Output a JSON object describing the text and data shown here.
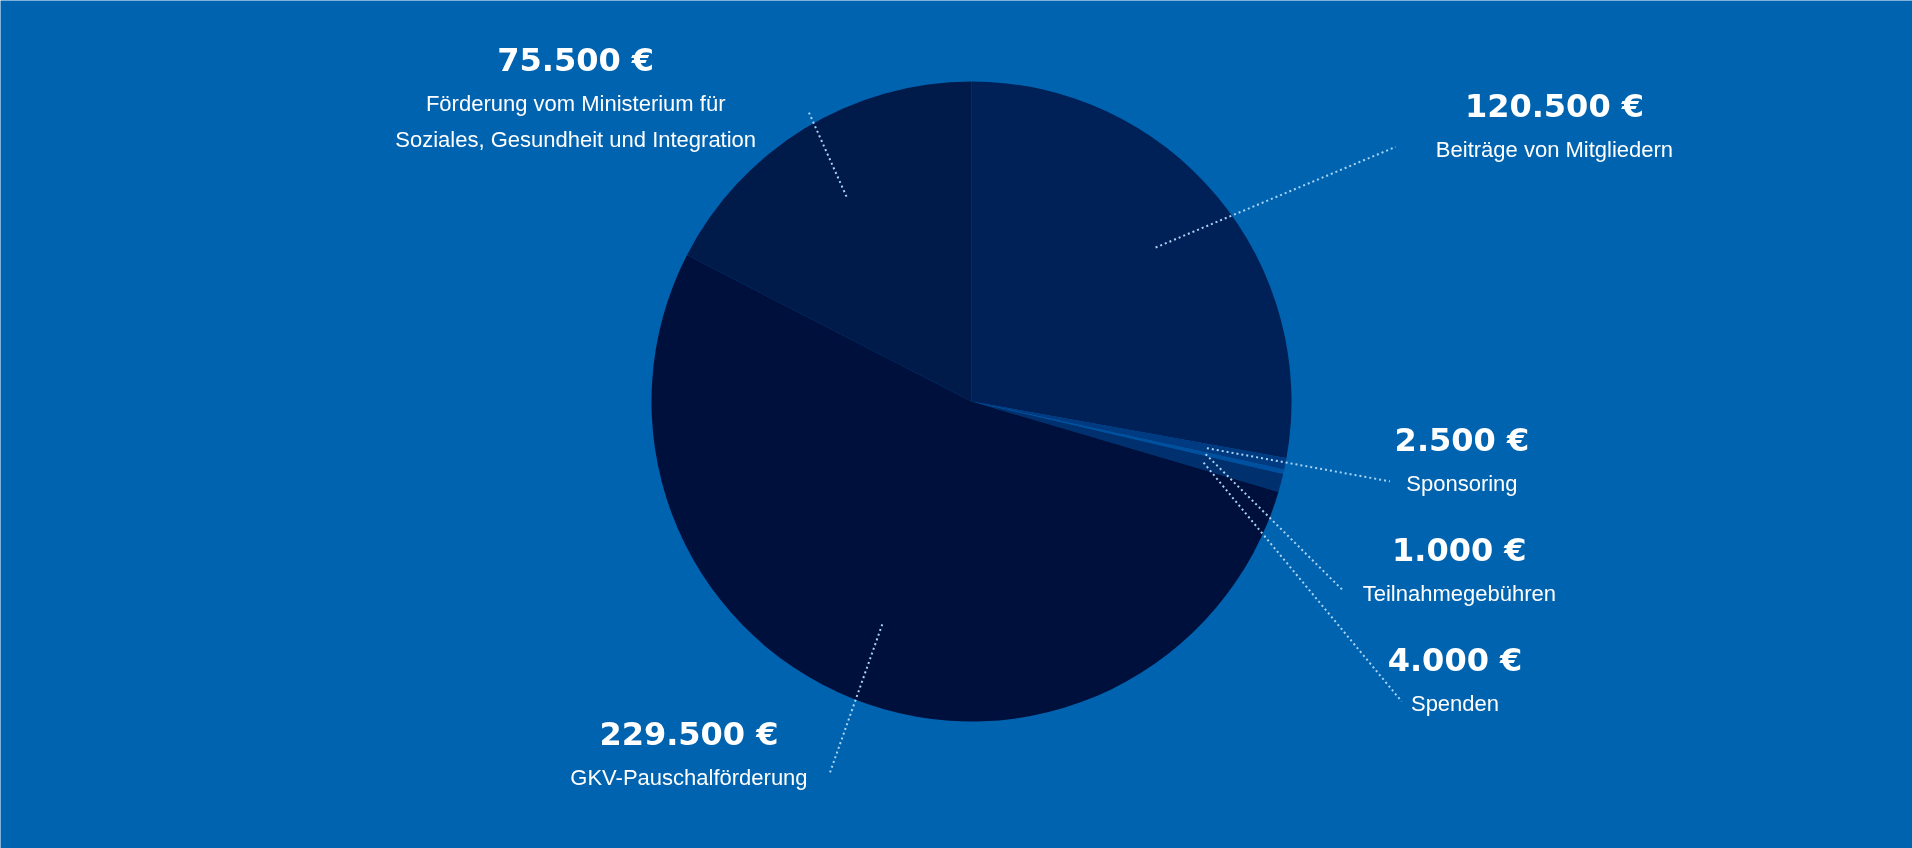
{
  "chart_data": {
    "type": "pie",
    "categories": [
      "Beiträge von Mitgliedern",
      "Sponsoring",
      "Teilnahmegebühren",
      "Spenden",
      "GKV-Pauschalförderung",
      "Förderung vom Ministerium für\nSoziales, Gesundheit und Integration"
    ],
    "values": [
      120500,
      2500,
      1000,
      4000,
      229500,
      75500
    ],
    "value_labels": [
      "120.500 €",
      "2.500 €",
      "1.000 €",
      "4.000 €",
      "229.500 €",
      "75.500 €"
    ],
    "colors": [
      "#002058",
      "#003a80",
      "#0050a0",
      "#00306e",
      "#00103c",
      "#001a4a"
    ]
  }
}
